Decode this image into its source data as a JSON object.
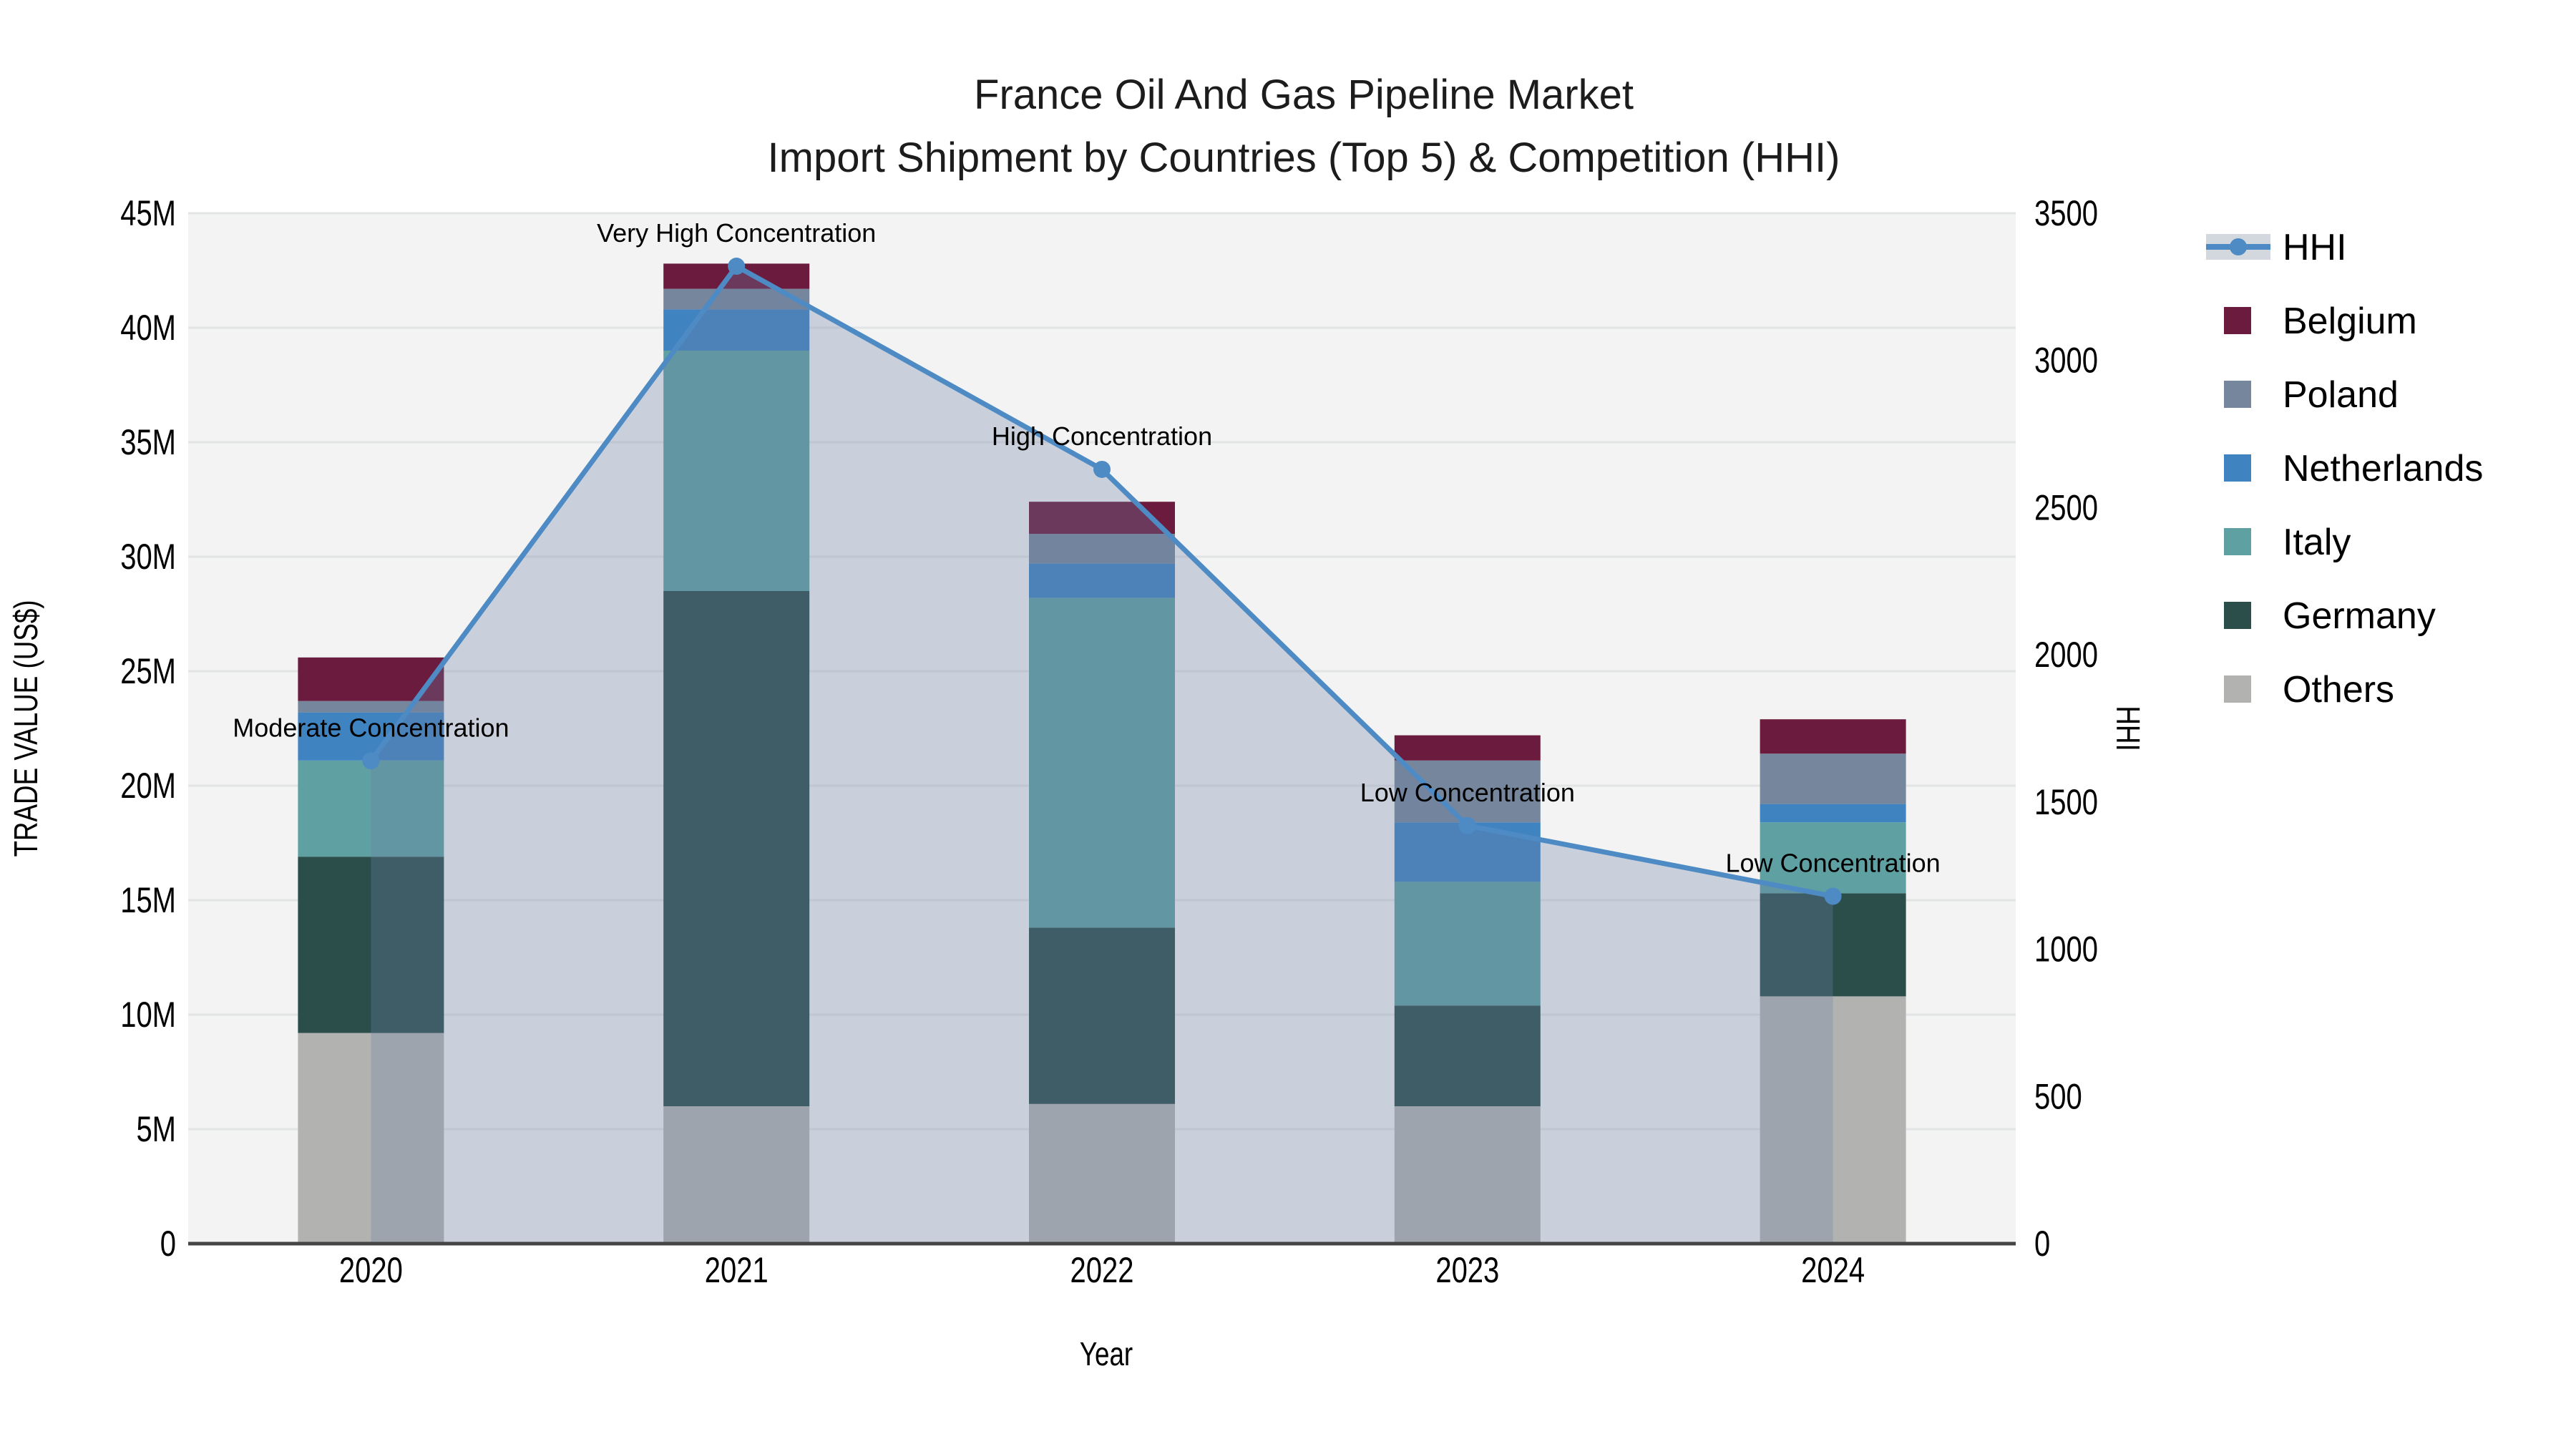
{
  "title": {
    "line1": "France Oil And Gas Pipeline Market",
    "line2": "Import Shipment by Countries (Top 5) & Competition (HHI)"
  },
  "axes": {
    "x": {
      "title": "Year",
      "categories": [
        "2020",
        "2021",
        "2022",
        "2023",
        "2024"
      ]
    },
    "y_left": {
      "title": "TRADE VALUE (US$)",
      "ticks": [
        {
          "v": 0,
          "label": "0"
        },
        {
          "v": 5,
          "label": "5M"
        },
        {
          "v": 10,
          "label": "10M"
        },
        {
          "v": 15,
          "label": "15M"
        },
        {
          "v": 20,
          "label": "20M"
        },
        {
          "v": 25,
          "label": "25M"
        },
        {
          "v": 30,
          "label": "30M"
        },
        {
          "v": 35,
          "label": "35M"
        },
        {
          "v": 40,
          "label": "40M"
        },
        {
          "v": 45,
          "label": "45M"
        }
      ]
    },
    "y_right": {
      "title": "HHI",
      "ticks": [
        {
          "v": 0,
          "label": "0"
        },
        {
          "v": 500,
          "label": "500"
        },
        {
          "v": 1000,
          "label": "1000"
        },
        {
          "v": 1500,
          "label": "1500"
        },
        {
          "v": 2000,
          "label": "2000"
        },
        {
          "v": 2500,
          "label": "2500"
        },
        {
          "v": 3000,
          "label": "3000"
        },
        {
          "v": 3500,
          "label": "3500"
        }
      ]
    }
  },
  "legend": {
    "items": [
      {
        "label": "HHI",
        "type": "line",
        "color": "#4e8bc4",
        "band": "#d2d8de"
      },
      {
        "label": "Belgium",
        "type": "swatch",
        "color": "#6b1b3d"
      },
      {
        "label": "Poland",
        "type": "swatch",
        "color": "#76869c"
      },
      {
        "label": "Netherlands",
        "type": "swatch",
        "color": "#3f83c1"
      },
      {
        "label": "Italy",
        "type": "swatch",
        "color": "#5fa0a3"
      },
      {
        "label": "Germany",
        "type": "swatch",
        "color": "#2b4e4b"
      },
      {
        "label": "Others",
        "type": "swatch",
        "color": "#b2b3b1"
      }
    ]
  },
  "chart_data": {
    "type": "bar",
    "subtype": "stacked-bars-with-hhi-line",
    "title": "France Oil And Gas Pipeline Market — Import Shipment by Countries (Top 5) & Competition (HHI)",
    "categories": [
      "2020",
      "2021",
      "2022",
      "2023",
      "2024"
    ],
    "unit": "million US$",
    "stack_order": "bottom-to-top",
    "series": [
      {
        "name": "Others",
        "color": "#b2b3b1",
        "values": [
          9.2,
          6.0,
          6.1,
          6.0,
          10.8
        ]
      },
      {
        "name": "Germany",
        "color": "#2b4e4b",
        "values": [
          7.7,
          22.5,
          7.7,
          4.4,
          4.5
        ]
      },
      {
        "name": "Italy",
        "color": "#5fa0a3",
        "values": [
          4.2,
          10.5,
          14.4,
          5.4,
          3.1
        ]
      },
      {
        "name": "Netherlands",
        "color": "#3f83c1",
        "values": [
          2.1,
          1.8,
          1.5,
          2.6,
          0.8
        ]
      },
      {
        "name": "Poland",
        "color": "#76869c",
        "values": [
          0.5,
          0.9,
          1.3,
          2.7,
          2.2
        ]
      },
      {
        "name": "Belgium",
        "color": "#6b1b3d",
        "values": [
          1.9,
          1.1,
          1.4,
          1.1,
          1.5
        ]
      }
    ],
    "bar_totals": [
      25.6,
      42.8,
      32.4,
      22.2,
      22.9
    ],
    "hhi_line": {
      "name": "HHI",
      "axis": "right",
      "values": [
        1640,
        3320,
        2630,
        1420,
        1180
      ],
      "color": "#4e8bc4",
      "area_fill": "rgba(110,130,164,0.30)"
    },
    "annotations": [
      {
        "text": "Moderate Concentration",
        "category": "2020"
      },
      {
        "text": "Very High Concentration",
        "category": "2021"
      },
      {
        "text": "High Concentration",
        "category": "2022"
      },
      {
        "text": "Low Concentration",
        "category": "2023"
      },
      {
        "text": "Low Concentration",
        "category": "2024"
      }
    ],
    "xlabel": "Year",
    "ylabel_left": "TRADE VALUE (US$)",
    "ylabel_right": "HHI",
    "ylim_left_musd": [
      0,
      45
    ],
    "ylim_right_hhi": [
      0,
      3500
    ],
    "grid": "horizontal",
    "legend_position": "right"
  },
  "colors": {
    "plot_bg": "#f2f3f2",
    "gridline": "#e2e4e5",
    "axis_line": "#444444",
    "text": "#111111"
  }
}
